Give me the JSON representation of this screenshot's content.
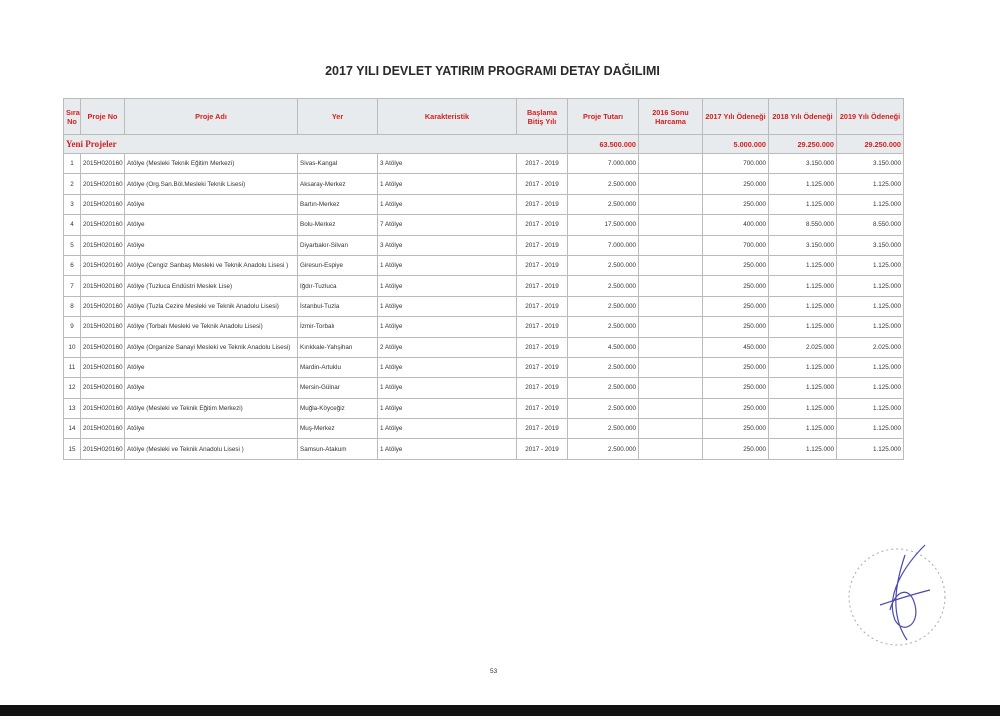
{
  "title": "2017 YILI DEVLET YATIRIM PROGRAMI DETAY DAĞILIMI",
  "columns": [
    "Sıra No",
    "Proje No",
    "Proje Adı",
    "Yer",
    "Karakteristik",
    "Başlama Bitiş Yılı",
    "Proje Tutarı",
    "2016 Sonu Harcama",
    "2017 Yılı Ödeneği",
    "2018 Yılı Ödeneği",
    "2019 Yılı Ödeneği"
  ],
  "group": {
    "label": "Yeni Projeler",
    "tutar": "63.500.000",
    "harcama": "",
    "y2017": "5.000.000",
    "y2018": "29.250.000",
    "y2019": "29.250.000"
  },
  "rows": [
    [
      "1",
      "2015H020160",
      "Atölye (Mesleki Teknik Eğitim Merkezi)",
      "Sivas-Kangal",
      "3 Atölye",
      "2017 - 2019",
      "7.000.000",
      "",
      "700.000",
      "3.150.000",
      "3.150.000"
    ],
    [
      "2",
      "2015H020160",
      "Atölye (Org.San.Böl.Mesleki Teknik Lisesi)",
      "Aksaray-Merkez",
      "1 Atölye",
      "2017 - 2019",
      "2.500.000",
      "",
      "250.000",
      "1.125.000",
      "1.125.000"
    ],
    [
      "3",
      "2015H020160",
      "Atölye",
      "Bartın-Merkez",
      "1 Atölye",
      "2017 - 2019",
      "2.500.000",
      "",
      "250.000",
      "1.125.000",
      "1.125.000"
    ],
    [
      "4",
      "2015H020160",
      "Atölye",
      "Bolu-Merkez",
      "7 Atölye",
      "2017 - 2019",
      "17.500.000",
      "",
      "400.000",
      "8.550.000",
      "8.550.000"
    ],
    [
      "5",
      "2015H020160",
      "Atölye",
      "Diyarbakır-Silvan",
      "3 Atölye",
      "2017 - 2019",
      "7.000.000",
      "",
      "700.000",
      "3.150.000",
      "3.150.000"
    ],
    [
      "6",
      "2015H020160",
      "Atölye (Cengiz Sanbaş Mesleki ve Teknik Anadolu Lisesi )",
      "Giresun-Espiye",
      "1 Atölye",
      "2017 - 2019",
      "2.500.000",
      "",
      "250.000",
      "1.125.000",
      "1.125.000"
    ],
    [
      "7",
      "2015H020160",
      "Atölye (Tuzluca Endüstri Meslek Lise)",
      "Iğdır-Tuzluca",
      "1 Atölye",
      "2017 - 2019",
      "2.500.000",
      "",
      "250.000",
      "1.125.000",
      "1.125.000"
    ],
    [
      "8",
      "2015H020160",
      "Atölye (Tuzla Cezire Mesleki ve Teknik Anadolu Lisesi)",
      "İstanbul-Tuzla",
      "1 Atölye",
      "2017 - 2019",
      "2.500.000",
      "",
      "250.000",
      "1.125.000",
      "1.125.000"
    ],
    [
      "9",
      "2015H020160",
      "Atölye (Torbalı Mesleki ve Teknik Anadolu Lisesi)",
      "İzmir-Torbalı",
      "1 Atölye",
      "2017 - 2019",
      "2.500.000",
      "",
      "250.000",
      "1.125.000",
      "1.125.000"
    ],
    [
      "10",
      "2015H020160",
      "Atölye (Organize Sanayi Mesleki ve Teknik Anadolu Lisesi)",
      "Kırıkkale-Yahşihan",
      "2 Atölye",
      "2017 - 2019",
      "4.500.000",
      "",
      "450.000",
      "2.025.000",
      "2.025.000"
    ],
    [
      "11",
      "2015H020160",
      "Atölye",
      "Mardin-Artuklu",
      "1 Atölye",
      "2017 - 2019",
      "2.500.000",
      "",
      "250.000",
      "1.125.000",
      "1.125.000"
    ],
    [
      "12",
      "2015H020160",
      "Atölye",
      "Mersin-Gülnar",
      "1 Atölye",
      "2017 - 2019",
      "2.500.000",
      "",
      "250.000",
      "1.125.000",
      "1.125.000"
    ],
    [
      "13",
      "2015H020160",
      "Atölye (Mesleki ve Teknik Eğitim Merkezi)",
      "Muğla-Köyceğiz",
      "1 Atölye",
      "2017 - 2019",
      "2.500.000",
      "",
      "250.000",
      "1.125.000",
      "1.125.000"
    ],
    [
      "14",
      "2015H020160",
      "Atölye",
      "Muş-Merkez",
      "1 Atölye",
      "2017 - 2019",
      "2.500.000",
      "",
      "250.000",
      "1.125.000",
      "1.125.000"
    ],
    [
      "15",
      "2015H020160",
      "Atölye (Mesleki ve Teknik Anadolu Lisesi )",
      "Samsun-Atakum",
      "1 Atölye",
      "2017 - 2019",
      "2.500.000",
      "",
      "250.000",
      "1.125.000",
      "1.125.000"
    ]
  ],
  "page_number": "53"
}
